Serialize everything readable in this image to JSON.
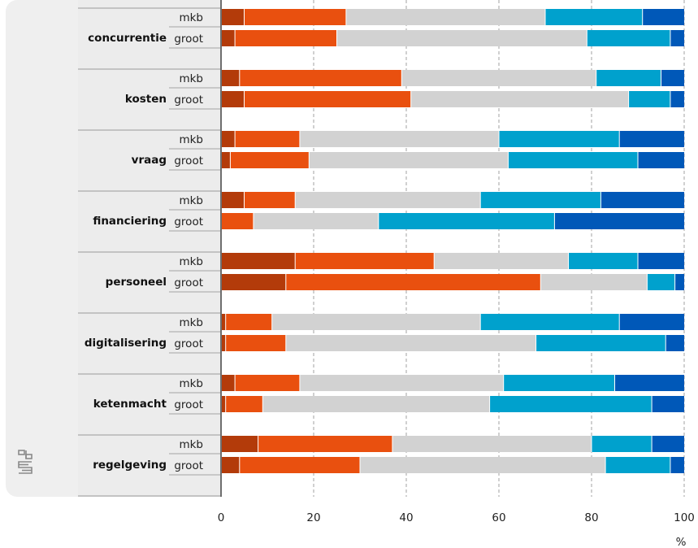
{
  "chart_data": {
    "type": "bar",
    "stacked": true,
    "orientation": "horizontal",
    "unit_label": "%",
    "xlim": [
      0,
      100
    ],
    "xticks": [
      "0",
      "20",
      "40",
      "60",
      "80",
      "100"
    ],
    "grid": true,
    "logo": "cbs",
    "segment_colors": [
      "#b33b0a",
      "#e9500f",
      "#d2d2d2",
      "#00a1cd",
      "#0058b8"
    ],
    "categories": [
      {
        "name": "concurrentie",
        "rows": [
          {
            "label": "mkb",
            "values": [
              5,
              22,
              43,
              21,
              9
            ]
          },
          {
            "label": "groot",
            "values": [
              3,
              22,
              54,
              18,
              3
            ]
          }
        ]
      },
      {
        "name": "kosten",
        "rows": [
          {
            "label": "mkb",
            "values": [
              4,
              35,
              42,
              14,
              5
            ]
          },
          {
            "label": "groot",
            "values": [
              5,
              36,
              47,
              9,
              3
            ]
          }
        ]
      },
      {
        "name": "vraag",
        "rows": [
          {
            "label": "mkb",
            "values": [
              3,
              14,
              43,
              26,
              14
            ]
          },
          {
            "label": "groot",
            "values": [
              2,
              17,
              43,
              28,
              10
            ]
          }
        ]
      },
      {
        "name": "financiering",
        "rows": [
          {
            "label": "mkb",
            "values": [
              5,
              11,
              40,
              26,
              18
            ]
          },
          {
            "label": "groot",
            "values": [
              0,
              7,
              27,
              38,
              28
            ]
          }
        ]
      },
      {
        "name": "personeel",
        "rows": [
          {
            "label": "mkb",
            "values": [
              16,
              30,
              29,
              15,
              10
            ]
          },
          {
            "label": "groot",
            "values": [
              14,
              55,
              23,
              6,
              2
            ]
          }
        ]
      },
      {
        "name": "digitalisering",
        "rows": [
          {
            "label": "mkb",
            "values": [
              1,
              10,
              45,
              30,
              14
            ]
          },
          {
            "label": "groot",
            "values": [
              1,
              13,
              54,
              28,
              4
            ]
          }
        ]
      },
      {
        "name": "ketenmacht",
        "rows": [
          {
            "label": "mkb",
            "values": [
              3,
              14,
              44,
              24,
              15
            ]
          },
          {
            "label": "groot",
            "values": [
              1,
              8,
              49,
              35,
              7
            ]
          }
        ]
      },
      {
        "name": "regelgeving",
        "rows": [
          {
            "label": "mkb",
            "values": [
              8,
              29,
              43,
              13,
              7
            ]
          },
          {
            "label": "groot",
            "values": [
              4,
              26,
              53,
              14,
              3
            ]
          }
        ]
      }
    ]
  }
}
